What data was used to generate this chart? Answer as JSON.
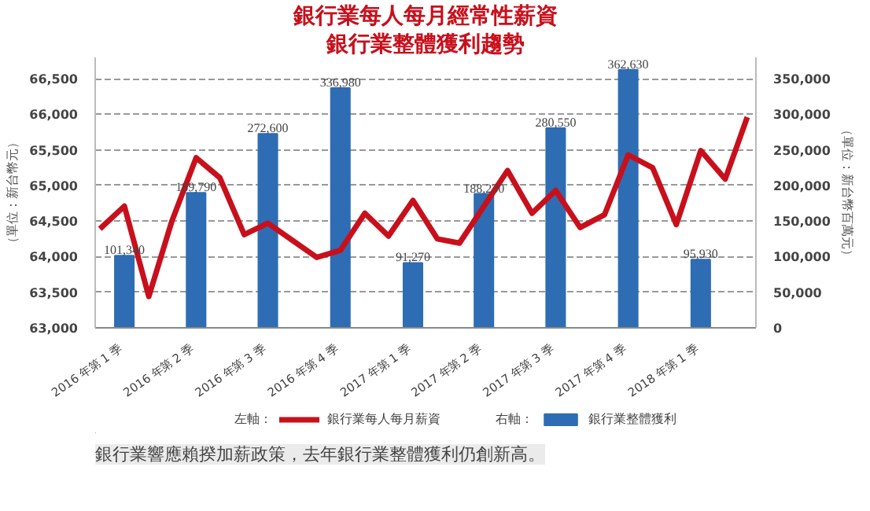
{
  "chart_data": {
    "type": "bar",
    "title": "銀行業每人每月經常性薪資",
    "subtitle": "銀行業整體獲利趨勢",
    "ylabel": "（單位：新台幣元）",
    "y2label": "（單位：新台幣百萬元）",
    "xlim": [
      "2015-11-25",
      "2018-03-12"
    ],
    "xticks": [
      {
        "value": "2016-01",
        "label": "2016 年第 1 季"
      },
      {
        "value": "2016-04",
        "label": "2016 年第 2 季"
      },
      {
        "value": "2016-07",
        "label": "2016 年第 3 季"
      },
      {
        "value": "2016-10",
        "label": "2016 年第 4 季"
      },
      {
        "value": "2017-01",
        "label": "2017 年第 1 季"
      },
      {
        "value": "2017-04",
        "label": "2017 年第 2 季"
      },
      {
        "value": "2017-07",
        "label": "2017 年第 3 季"
      },
      {
        "value": "2017-10",
        "label": "2017 年第 4 季"
      },
      {
        "value": "2018-01",
        "label": "2018 年第 1 季"
      }
    ],
    "series": [
      {
        "name": "銀行業每人每月薪資",
        "type": "line",
        "color": "#c8101c",
        "x": [
          "2015-12",
          "2016-01",
          "2016-02",
          "2016-03",
          "2016-04",
          "2016-05",
          "2016-06",
          "2016-07",
          "2016-08",
          "2016-09",
          "2016-10",
          "2016-11",
          "2016-12",
          "2017-01",
          "2017-02",
          "2017-03",
          "2017-04",
          "2017-05",
          "2017-06",
          "2017-07",
          "2017-08",
          "2017-09",
          "2017-10",
          "2017-11",
          "2017-12",
          "2018-01",
          "2018-02",
          "2018-03"
        ],
        "values": [
          64390,
          64710,
          63440,
          64490,
          65390,
          65110,
          64310,
          64470,
          64230,
          63990,
          64090,
          64610,
          64290,
          64790,
          64250,
          64190,
          64710,
          65210,
          64610,
          64930,
          64410,
          64590,
          65430,
          65250,
          64450,
          65490,
          65090,
          65960
        ]
      },
      {
        "name": "銀行業整體獲利",
        "axis": "y2",
        "color": "#2e6db4",
        "x": [
          "2016-01",
          "2016-04",
          "2016-07",
          "2016-10",
          "2017-01",
          "2017-04",
          "2017-07",
          "2017-10",
          "2018-01"
        ],
        "values": [
          101340,
          189790,
          272600,
          336980,
          91270,
          188230,
          280550,
          362630,
          95930
        ],
        "value_labels": [
          "101,340",
          "189,790",
          "272,600",
          "336,980",
          "91,270",
          "188,230",
          "280,550",
          "362,630",
          "95,930"
        ]
      }
    ],
    "ylim": [
      63000,
      66800
    ],
    "yticks": [
      {
        "value": 63000,
        "label": "63,000"
      },
      {
        "value": 63500,
        "label": "63,500"
      },
      {
        "value": 64000,
        "label": "64,000"
      },
      {
        "value": 64500,
        "label": "64,500"
      },
      {
        "value": 65000,
        "label": "65,000"
      },
      {
        "value": 65500,
        "label": "65,500"
      },
      {
        "value": 66000,
        "label": "66,000"
      },
      {
        "value": 66500,
        "label": "66,500"
      }
    ],
    "y2lim": [
      0,
      380000
    ],
    "y2ticks": [
      0,
      {
        "value": 50000,
        "label": "50,000"
      },
      {
        "value": 100000,
        "label": "100,000"
      },
      {
        "value": 150000,
        "label": "150,000"
      },
      {
        "value": 200000,
        "label": "200,000"
      },
      {
        "value": 250000,
        "label": "250,000"
      },
      {
        "value": 300000,
        "label": "300,000"
      },
      {
        "value": 350000,
        "label": "350,000"
      }
    ],
    "grid": "y",
    "legend": "bottom",
    "line_style": "solid",
    "annotations": [
      "左軸：",
      "右軸：",
      "銀行業響應賴揆加薪政策，去年銀行業整體獲利仍創新高。"
    ]
  }
}
